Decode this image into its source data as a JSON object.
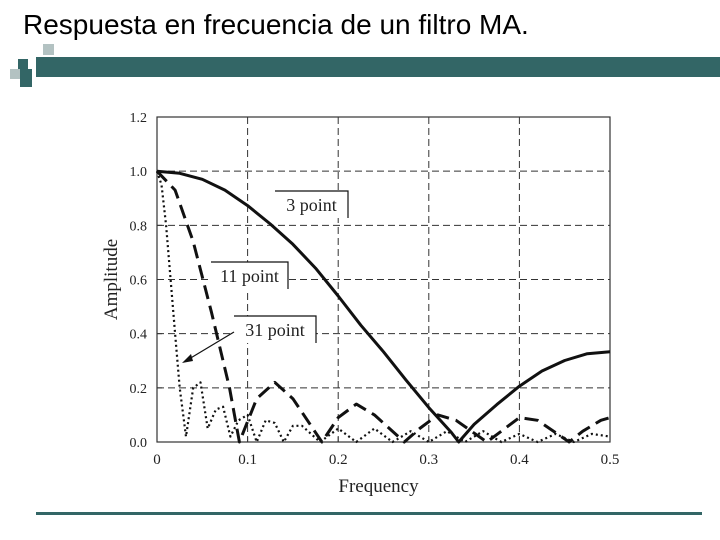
{
  "slide": {
    "title": "Respuesta en frecuencia de un filtro MA.",
    "accent_color": "#336666",
    "square_dark": "#336666",
    "square_light": "#b3c2c2"
  },
  "chart_data": {
    "type": "line",
    "title": "",
    "xlabel": "Frequency",
    "ylabel": "Amplitude",
    "xlim": [
      0,
      0.5
    ],
    "ylim": [
      0,
      1.2
    ],
    "xticks": [
      "0",
      "0.1",
      "0.2",
      "0.3",
      "0.4",
      "0.5"
    ],
    "yticks": [
      "0.0",
      "0.2",
      "0.4",
      "0.6",
      "0.8",
      "1.0",
      "1.2"
    ],
    "grid": true,
    "series": [
      {
        "name": "3 point",
        "style": "solid",
        "x": [
          0,
          0.025,
          0.05,
          0.075,
          0.1,
          0.125,
          0.15,
          0.175,
          0.2,
          0.225,
          0.25,
          0.275,
          0.3,
          0.325,
          0.333,
          0.35,
          0.375,
          0.4,
          0.425,
          0.45,
          0.475,
          0.5
        ],
        "values": [
          1.0,
          0.992,
          0.97,
          0.93,
          0.873,
          0.805,
          0.73,
          0.642,
          0.539,
          0.431,
          0.333,
          0.228,
          0.127,
          0.035,
          0.0,
          0.065,
          0.138,
          0.206,
          0.262,
          0.301,
          0.326,
          0.333
        ]
      },
      {
        "name": "11 point",
        "style": "dashed",
        "x": [
          0,
          0.02,
          0.04,
          0.06,
          0.08,
          0.091,
          0.11,
          0.13,
          0.15,
          0.182,
          0.2,
          0.22,
          0.24,
          0.273,
          0.29,
          0.31,
          0.33,
          0.364,
          0.38,
          0.4,
          0.42,
          0.455,
          0.47,
          0.49,
          0.5
        ],
        "values": [
          1.0,
          0.93,
          0.74,
          0.48,
          0.2,
          0.0,
          0.16,
          0.22,
          0.16,
          0.0,
          0.09,
          0.14,
          0.1,
          0.0,
          0.05,
          0.1,
          0.08,
          0.0,
          0.04,
          0.09,
          0.08,
          0.0,
          0.04,
          0.08,
          0.09
        ]
      },
      {
        "name": "31 point",
        "style": "dotted",
        "x": [
          0,
          0.005,
          0.01,
          0.015,
          0.02,
          0.025,
          0.032,
          0.04,
          0.048,
          0.056,
          0.065,
          0.073,
          0.081,
          0.09,
          0.1,
          0.11,
          0.12,
          0.13,
          0.14,
          0.15,
          0.16,
          0.18,
          0.2,
          0.22,
          0.24,
          0.26,
          0.28,
          0.3,
          0.32,
          0.34,
          0.36,
          0.38,
          0.4,
          0.42,
          0.44,
          0.46,
          0.48,
          0.5
        ],
        "values": [
          1.0,
          0.95,
          0.8,
          0.6,
          0.4,
          0.2,
          0.02,
          0.2,
          0.22,
          0.05,
          0.12,
          0.13,
          0.02,
          0.08,
          0.1,
          0.0,
          0.08,
          0.07,
          0.0,
          0.06,
          0.06,
          0.0,
          0.05,
          0.0,
          0.05,
          0.0,
          0.04,
          0.0,
          0.04,
          0.0,
          0.04,
          0.0,
          0.03,
          0.0,
          0.03,
          0.0,
          0.03,
          0.02
        ]
      }
    ],
    "annotations": [
      {
        "text": "3 point"
      },
      {
        "text": "11 point"
      },
      {
        "text": "31 point"
      }
    ]
  }
}
